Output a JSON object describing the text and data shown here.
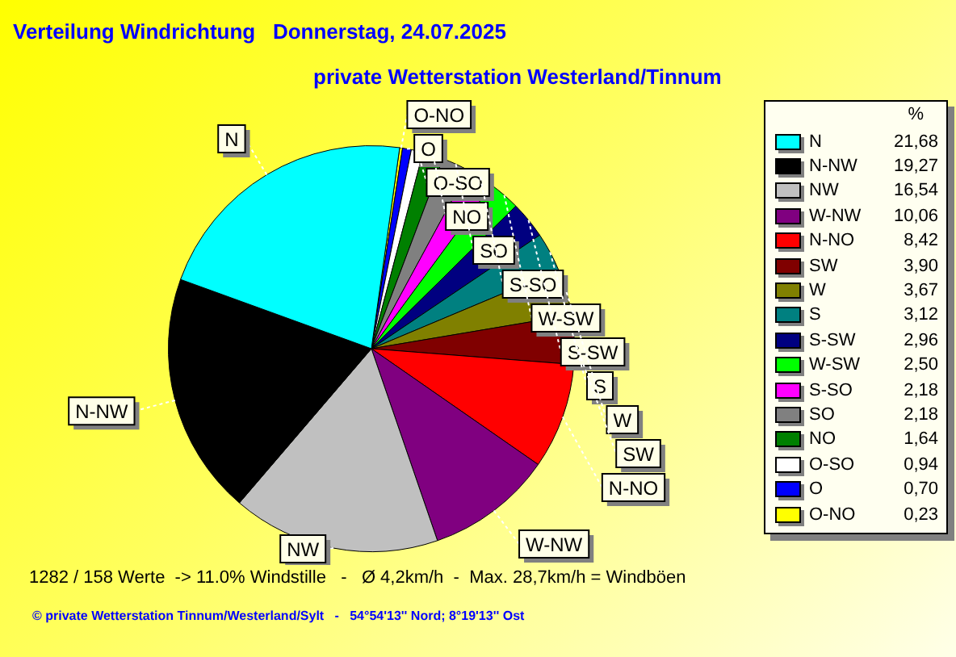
{
  "chart_data": {
    "type": "pie",
    "title": "Verteilung Windrichtung   Donnerstag, 24.07.2025",
    "subtitle": "private Wetterstation Westerland/Tinnum",
    "legend_title": "%",
    "legend": "right",
    "categories": [
      "N",
      "N-NW",
      "NW",
      "W-NW",
      "N-NO",
      "SW",
      "W",
      "S",
      "S-SW",
      "W-SW",
      "S-SO",
      "SO",
      "NO",
      "O-SO",
      "O",
      "O-NO"
    ],
    "values": [
      21.68,
      19.27,
      16.54,
      10.06,
      8.42,
      3.9,
      3.67,
      3.12,
      2.96,
      2.5,
      2.18,
      2.18,
      1.64,
      0.94,
      0.7,
      0.23
    ],
    "value_labels": [
      "21,68",
      "19,27",
      "16,54",
      "10,06",
      "8,42",
      "3,90",
      "3,67",
      "3,12",
      "2,96",
      "2,50",
      "2,18",
      "2,18",
      "1,64",
      "0,94",
      "0,70",
      "0,23"
    ],
    "colors": [
      "#00ffff",
      "#000000",
      "#c0c0c0",
      "#800080",
      "#ff0000",
      "#800000",
      "#808000",
      "#008080",
      "#000080",
      "#00ff00",
      "#ff00ff",
      "#808080",
      "#008000",
      "#ffffff",
      "#0000ff",
      "#ffff00"
    ],
    "annotations": [
      "1282 / 158 Werte  -> 11.0% Windstille   -   Ø 4,2km/h  -  Max. 28,7km/h = Windböen",
      "© private Wetterstation Tinnum/Westerland/Sylt   -   54°54'13'' Nord; 8°19'13'' Ost"
    ]
  }
}
